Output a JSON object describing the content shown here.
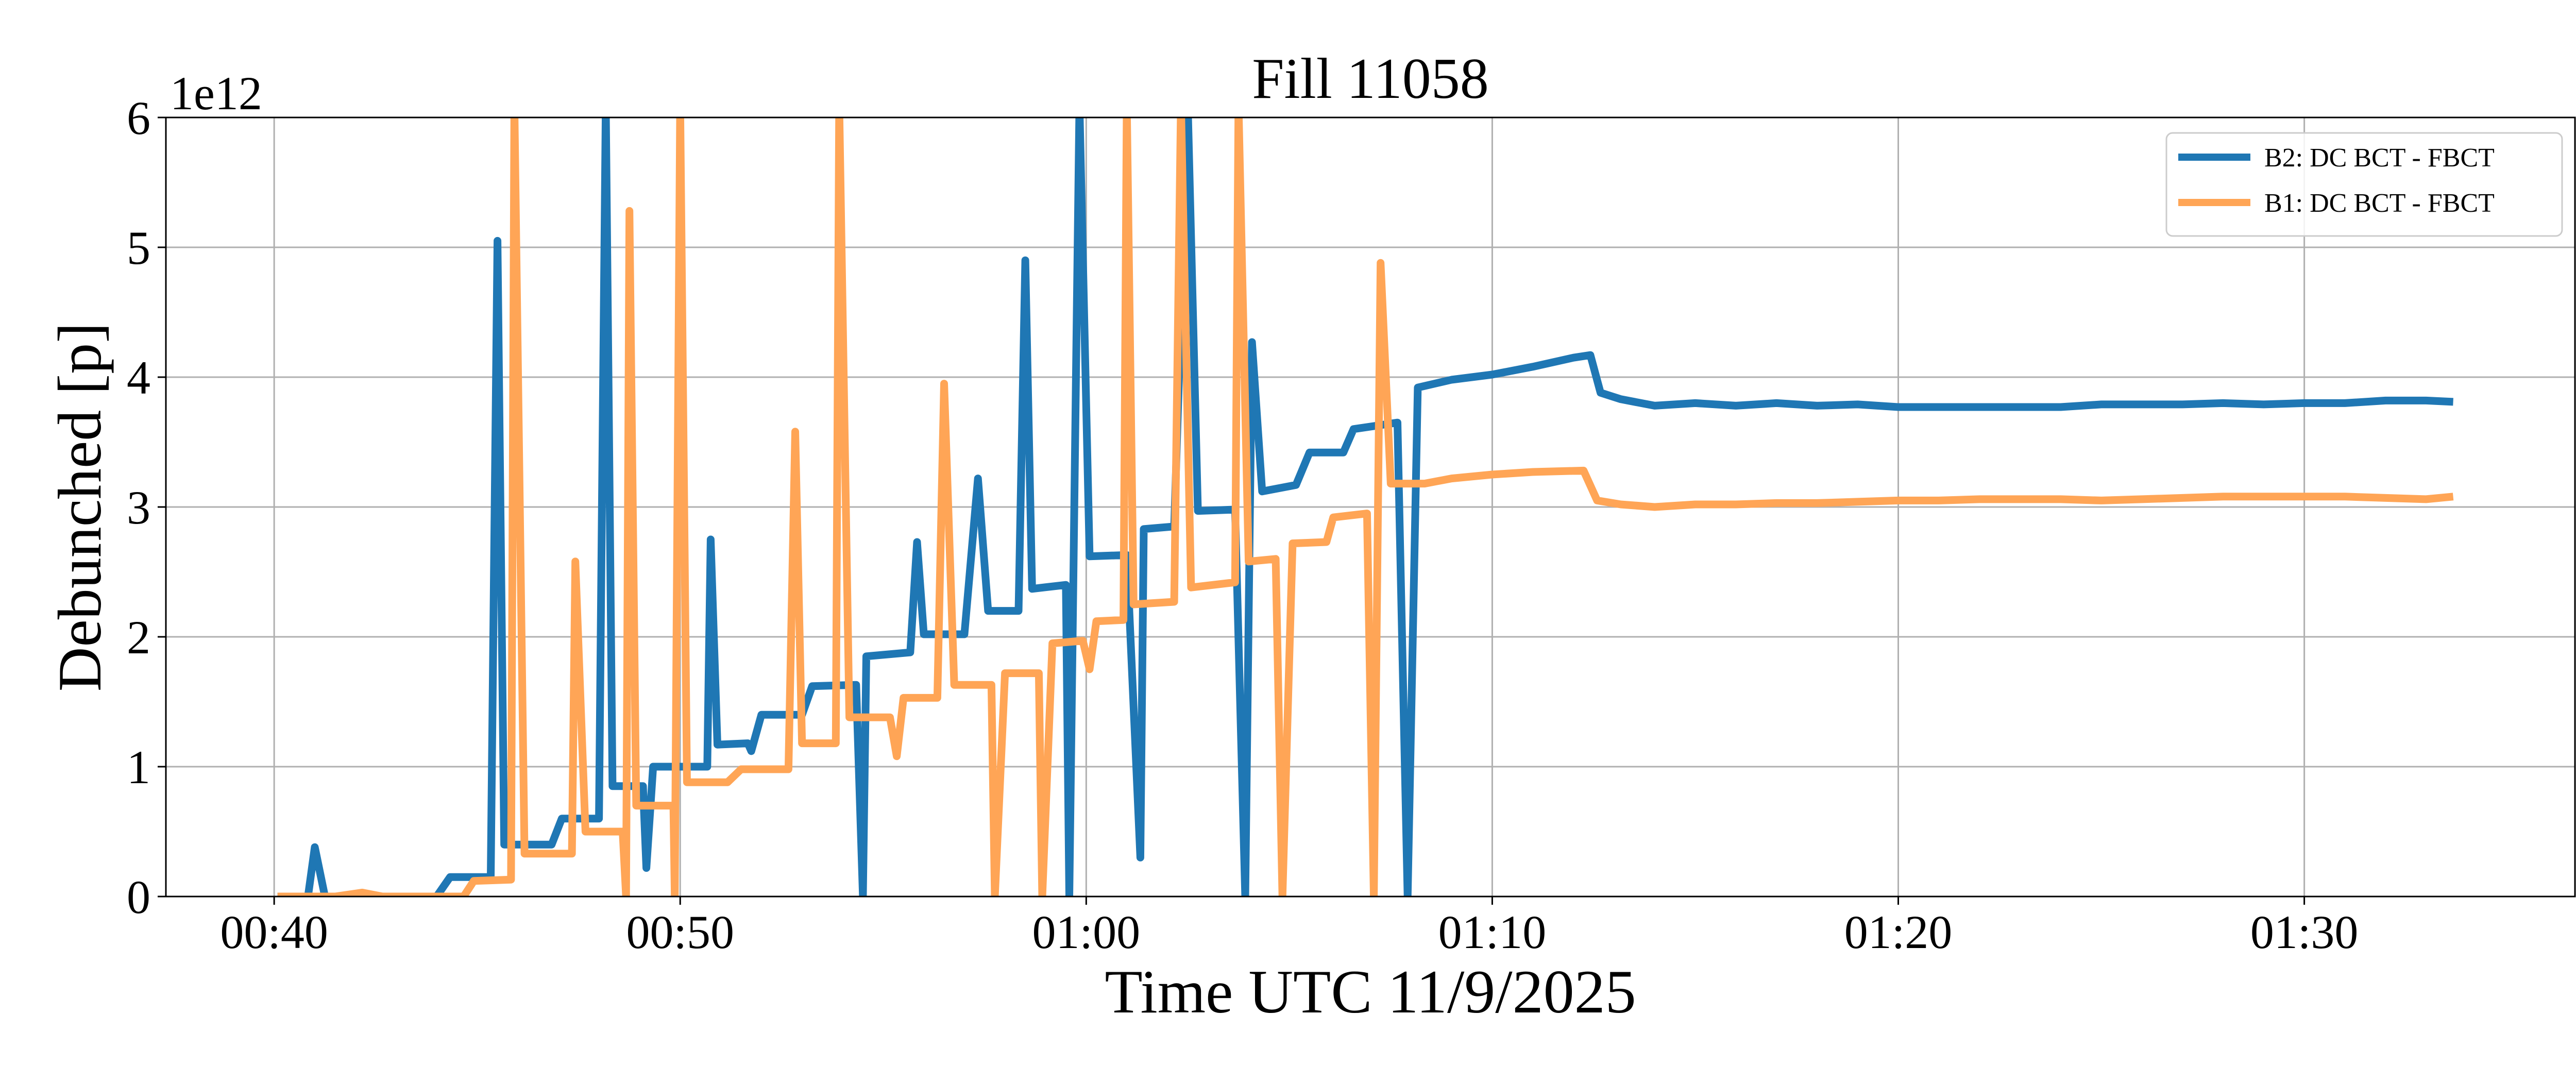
{
  "chart_data": {
    "type": "line",
    "title": "Fill 11058",
    "xlabel": "Time UTC 11/9/2025",
    "ylabel": "Debunched [p]",
    "y_offset_label": "1e12",
    "xlim": [
      "00:37:20",
      "01:36:40"
    ],
    "ylim": [
      0,
      6
    ],
    "x_ticks": [
      "00:40",
      "00:50",
      "01:00",
      "01:10",
      "01:20",
      "01:30"
    ],
    "y_ticks": [
      "0",
      "1",
      "2",
      "3",
      "4",
      "5",
      "6"
    ],
    "grid": true,
    "legend_position": "upper right",
    "series": [
      {
        "name": "B2: DC BCT - FBCT",
        "color": "#1f77b4",
        "points": [
          [
            "00:40:05",
            0
          ],
          [
            "00:40:50",
            0
          ],
          [
            "00:41:00",
            0.38
          ],
          [
            "00:41:15",
            0
          ],
          [
            "00:42:30",
            0
          ],
          [
            "00:44:00",
            0
          ],
          [
            "00:44:20",
            0.15
          ],
          [
            "00:45:20",
            0.15
          ],
          [
            "00:45:30",
            5.05
          ],
          [
            "00:45:40",
            0.4
          ],
          [
            "00:46:50",
            0.4
          ],
          [
            "00:47:05",
            0.6
          ],
          [
            "00:48:00",
            0.6
          ],
          [
            "00:48:10",
            6.1
          ],
          [
            "00:48:20",
            0.85
          ],
          [
            "00:49:05",
            0.85
          ],
          [
            "00:49:10",
            0.22
          ],
          [
            "00:49:20",
            1.0
          ],
          [
            "00:50:40",
            1.0
          ],
          [
            "00:50:45",
            2.75
          ],
          [
            "00:50:55",
            1.17
          ],
          [
            "00:51:40",
            1.18
          ],
          [
            "00:51:45",
            1.12
          ],
          [
            "00:52:00",
            1.4
          ],
          [
            "00:53:00",
            1.4
          ],
          [
            "00:53:15",
            1.62
          ],
          [
            "00:54:20",
            1.63
          ],
          [
            "00:54:30",
            0
          ],
          [
            "00:54:35",
            1.85
          ],
          [
            "00:55:40",
            1.88
          ],
          [
            "00:55:50",
            2.73
          ],
          [
            "00:56:00",
            2.02
          ],
          [
            "00:57:00",
            2.02
          ],
          [
            "00:57:20",
            3.22
          ],
          [
            "00:57:35",
            2.2
          ],
          [
            "00:58:20",
            2.2
          ],
          [
            "00:58:30",
            4.9
          ],
          [
            "00:58:40",
            2.37
          ],
          [
            "00:59:30",
            2.4
          ],
          [
            "00:59:35",
            0
          ],
          [
            "00:59:50",
            6.1
          ],
          [
            "01:00:05",
            2.62
          ],
          [
            "01:01:00",
            2.63
          ],
          [
            "01:01:20",
            0.3
          ],
          [
            "01:01:25",
            2.83
          ],
          [
            "01:02:10",
            2.85
          ],
          [
            "01:02:30",
            6.1
          ],
          [
            "01:02:45",
            2.97
          ],
          [
            "01:03:40",
            2.98
          ],
          [
            "01:03:55",
            0
          ],
          [
            "01:04:05",
            4.27
          ],
          [
            "01:04:20",
            3.12
          ],
          [
            "01:05:10",
            3.17
          ],
          [
            "01:05:30",
            3.42
          ],
          [
            "01:06:20",
            3.42
          ],
          [
            "01:06:35",
            3.6
          ],
          [
            "01:07:40",
            3.65
          ],
          [
            "01:07:55",
            0
          ],
          [
            "01:08:10",
            3.92
          ],
          [
            "01:09:00",
            3.98
          ],
          [
            "01:10:00",
            4.02
          ],
          [
            "01:11:00",
            4.08
          ],
          [
            "01:12:00",
            4.15
          ],
          [
            "01:12:25",
            4.17
          ],
          [
            "01:12:40",
            3.88
          ],
          [
            "01:13:10",
            3.83
          ],
          [
            "01:14:00",
            3.78
          ],
          [
            "01:15:00",
            3.8
          ],
          [
            "01:16:00",
            3.78
          ],
          [
            "01:17:00",
            3.8
          ],
          [
            "01:18:00",
            3.78
          ],
          [
            "01:19:00",
            3.79
          ],
          [
            "01:20:00",
            3.77
          ],
          [
            "01:21:00",
            3.77
          ],
          [
            "01:22:00",
            3.77
          ],
          [
            "01:23:00",
            3.77
          ],
          [
            "01:24:00",
            3.77
          ],
          [
            "01:25:00",
            3.79
          ],
          [
            "01:26:00",
            3.79
          ],
          [
            "01:27:00",
            3.79
          ],
          [
            "01:28:00",
            3.8
          ],
          [
            "01:29:00",
            3.79
          ],
          [
            "01:30:00",
            3.8
          ],
          [
            "01:31:00",
            3.8
          ],
          [
            "01:32:00",
            3.82
          ],
          [
            "01:33:00",
            3.82
          ],
          [
            "01:33:40",
            3.81
          ]
        ]
      },
      {
        "name": "B1: DC BCT - FBCT",
        "color": "#ffa556",
        "points": [
          [
            "00:40:05",
            0
          ],
          [
            "00:41:30",
            0
          ],
          [
            "00:42:10",
            0.03
          ],
          [
            "00:42:40",
            0
          ],
          [
            "00:44:40",
            0
          ],
          [
            "00:44:55",
            0.12
          ],
          [
            "00:45:50",
            0.13
          ],
          [
            "00:45:55",
            6.1
          ],
          [
            "00:46:10",
            0.33
          ],
          [
            "00:47:20",
            0.33
          ],
          [
            "00:47:25",
            2.58
          ],
          [
            "00:47:40",
            0.5
          ],
          [
            "00:48:35",
            0.5
          ],
          [
            "00:48:40",
            0
          ],
          [
            "00:48:45",
            5.28
          ],
          [
            "00:48:55",
            0.7
          ],
          [
            "00:49:50",
            0.7
          ],
          [
            "00:49:52",
            0
          ],
          [
            "00:50:00",
            6.1
          ],
          [
            "00:50:10",
            0.88
          ],
          [
            "00:51:10",
            0.88
          ],
          [
            "00:51:30",
            0.98
          ],
          [
            "00:52:40",
            0.98
          ],
          [
            "00:52:50",
            3.58
          ],
          [
            "00:53:00",
            1.18
          ],
          [
            "00:53:50",
            1.18
          ],
          [
            "00:53:55",
            6.1
          ],
          [
            "00:54:10",
            1.38
          ],
          [
            "00:55:10",
            1.38
          ],
          [
            "00:55:20",
            1.08
          ],
          [
            "00:55:30",
            1.53
          ],
          [
            "00:56:20",
            1.53
          ],
          [
            "00:56:30",
            3.95
          ],
          [
            "00:56:45",
            1.63
          ],
          [
            "00:57:40",
            1.63
          ],
          [
            "00:57:45",
            0
          ],
          [
            "00:58:00",
            1.72
          ],
          [
            "00:58:50",
            1.72
          ],
          [
            "00:58:55",
            0
          ],
          [
            "00:59:10",
            1.95
          ],
          [
            "00:59:55",
            1.97
          ],
          [
            "01:00:05",
            1.75
          ],
          [
            "01:00:15",
            2.12
          ],
          [
            "01:00:55",
            2.13
          ],
          [
            "01:01:00",
            6.1
          ],
          [
            "01:01:10",
            2.25
          ],
          [
            "01:02:10",
            2.27
          ],
          [
            "01:02:20",
            6.1
          ],
          [
            "01:02:35",
            2.38
          ],
          [
            "01:03:40",
            2.42
          ],
          [
            "01:03:45",
            6.1
          ],
          [
            "01:04:00",
            2.58
          ],
          [
            "01:04:40",
            2.6
          ],
          [
            "01:04:50",
            0
          ],
          [
            "01:05:05",
            2.72
          ],
          [
            "01:05:55",
            2.73
          ],
          [
            "01:06:05",
            2.92
          ],
          [
            "01:06:55",
            2.95
          ],
          [
            "01:07:05",
            0
          ],
          [
            "01:07:15",
            4.88
          ],
          [
            "01:07:30",
            3.18
          ],
          [
            "01:08:20",
            3.18
          ],
          [
            "01:09:00",
            3.22
          ],
          [
            "01:10:00",
            3.25
          ],
          [
            "01:11:00",
            3.27
          ],
          [
            "01:12:15",
            3.28
          ],
          [
            "01:12:35",
            3.05
          ],
          [
            "01:13:10",
            3.02
          ],
          [
            "01:14:00",
            3.0
          ],
          [
            "01:15:00",
            3.02
          ],
          [
            "01:16:00",
            3.02
          ],
          [
            "01:17:00",
            3.03
          ],
          [
            "01:18:00",
            3.03
          ],
          [
            "01:19:00",
            3.04
          ],
          [
            "01:20:00",
            3.05
          ],
          [
            "01:21:00",
            3.05
          ],
          [
            "01:22:00",
            3.06
          ],
          [
            "01:23:00",
            3.06
          ],
          [
            "01:24:00",
            3.06
          ],
          [
            "01:25:00",
            3.05
          ],
          [
            "01:26:00",
            3.06
          ],
          [
            "01:27:00",
            3.07
          ],
          [
            "01:28:00",
            3.08
          ],
          [
            "01:29:00",
            3.08
          ],
          [
            "01:30:00",
            3.08
          ],
          [
            "01:31:00",
            3.08
          ],
          [
            "01:32:00",
            3.07
          ],
          [
            "01:33:00",
            3.06
          ],
          [
            "01:33:40",
            3.08
          ]
        ]
      }
    ]
  }
}
